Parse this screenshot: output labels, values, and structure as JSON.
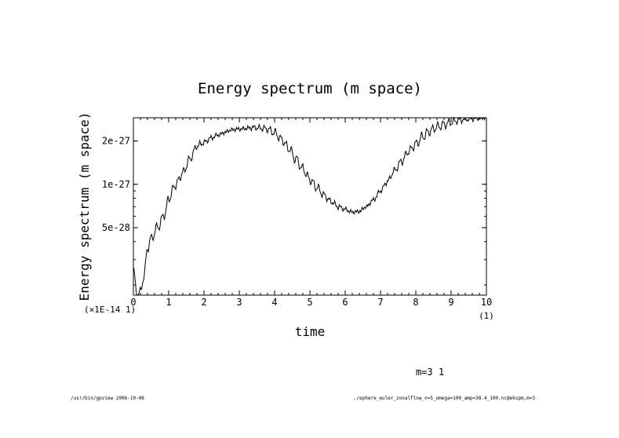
{
  "chart_data": {
    "type": "line",
    "title": "Energy spectrum (m space)",
    "xlabel": "time",
    "ylabel": "Energy spectrum (m space)",
    "x_unit_label": "(1)",
    "y_unit_label": "(×1E-14 1)",
    "xlim": [
      0,
      10
    ],
    "ylim_log": [
      1.7e-28,
      2.9e-27
    ],
    "x_ticks": [
      "0",
      "1",
      "2",
      "3",
      "4",
      "5",
      "6",
      "7",
      "8",
      "9",
      "10"
    ],
    "y_ticks": [
      {
        "label": "5e-28",
        "value": 5e-28
      },
      {
        "label": "1e-27",
        "value": 1e-27
      },
      {
        "label": "2e-27",
        "value": 2e-27
      }
    ],
    "series": [
      {
        "name": "m=3 1",
        "x": [
          0,
          0.1,
          0.2,
          0.3,
          0.4,
          0.5,
          0.7,
          0.9,
          1.0,
          1.2,
          1.4,
          1.6,
          1.8,
          2.0,
          2.2,
          2.4,
          2.6,
          2.8,
          3.0,
          3.2,
          3.4,
          3.6,
          3.8,
          4.0,
          4.2,
          4.4,
          4.6,
          4.8,
          5.0,
          5.2,
          5.4,
          5.6,
          5.8,
          6.0,
          6.2,
          6.4,
          6.6,
          6.8,
          7.0,
          7.2,
          7.4,
          7.6,
          7.8,
          8.0,
          8.2,
          8.4,
          8.6,
          8.8,
          9.0,
          9.2,
          9.4,
          9.6,
          9.8,
          10.0
        ],
        "values": [
          2.6e-28,
          1.7e-28,
          1.8e-28,
          2.3e-28,
          3.6e-28,
          4.2e-28,
          5.1e-28,
          6.3e-28,
          8e-28,
          1e-27,
          1.2e-27,
          1.5e-27,
          1.85e-27,
          1.95e-27,
          2.1e-27,
          2.2e-27,
          2.3e-27,
          2.4e-27,
          2.42e-27,
          2.45e-27,
          2.48e-27,
          2.46e-27,
          2.42e-27,
          2.28e-27,
          2.05e-27,
          1.78e-27,
          1.5e-27,
          1.28e-27,
          1.08e-27,
          9.5e-28,
          8.4e-28,
          7.6e-28,
          7e-28,
          6.7e-28,
          6.4e-28,
          6.5e-28,
          7e-28,
          7.8e-28,
          9e-28,
          1.05e-27,
          1.25e-27,
          1.45e-27,
          1.7e-27,
          1.9e-27,
          2.15e-27,
          2.35e-27,
          2.5e-27,
          2.6e-27,
          2.7e-27,
          2.78e-27,
          2.83e-27,
          2.86e-27,
          2.88e-27,
          2.9e-27
        ]
      }
    ],
    "legend_text": "m=3 1"
  },
  "footer": {
    "left": "/usr/bin/gpview  2006-10-08",
    "right": "./ephere_euler_zonalflow_n=5_omega=100_amp=38.4_100.nc@ekspm,m=3"
  }
}
